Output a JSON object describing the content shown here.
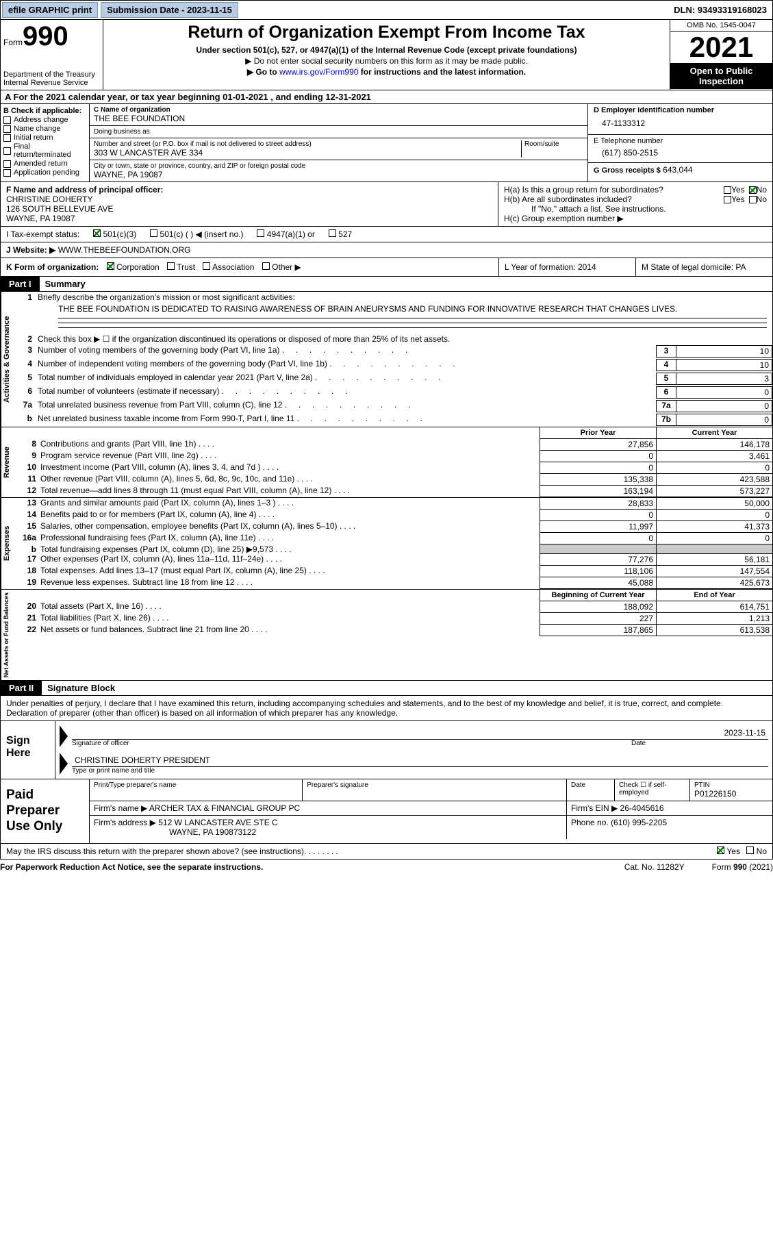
{
  "topbar": {
    "efile": "efile GRAPHIC print",
    "submission": "Submission Date - 2023-11-15",
    "dln": "DLN: 93493319168023"
  },
  "header": {
    "form_word": "Form",
    "form_num": "990",
    "dept": "Department of the Treasury Internal Revenue Service",
    "title": "Return of Organization Exempt From Income Tax",
    "sub1": "Under section 501(c), 527, or 4947(a)(1) of the Internal Revenue Code (except private foundations)",
    "sub2a": "▶ Do not enter social security numbers on this form as it may be made public.",
    "sub2b_pre": "▶ Go to ",
    "sub2b_link": "www.irs.gov/Form990",
    "sub2b_post": " for instructions and the latest information.",
    "omb": "OMB No. 1545-0047",
    "year": "2021",
    "open": "Open to Public Inspection"
  },
  "rowA": "A For the 2021 calendar year, or tax year beginning 01-01-2021    , and ending 12-31-2021",
  "B": {
    "label": "B Check if applicable:",
    "opts": [
      "Address change",
      "Name change",
      "Initial return",
      "Final return/terminated",
      "Amended return",
      "Application pending"
    ]
  },
  "C": {
    "name_lbl": "C Name of organization",
    "name": "THE BEE FOUNDATION",
    "dba_lbl": "Doing business as",
    "dba": "",
    "street_lbl": "Number and street (or P.O. box if mail is not delivered to street address)",
    "room_lbl": "Room/suite",
    "street": "303 W LANCASTER AVE 334",
    "city_lbl": "City or town, state or province, country, and ZIP or foreign postal code",
    "city": "WAYNE, PA   19087"
  },
  "D": {
    "ein_lbl": "D Employer identification number",
    "ein": "47-1133312",
    "phone_lbl": "E Telephone number",
    "phone": "(617) 850-2515",
    "gross_lbl": "G Gross receipts $",
    "gross": "643,044"
  },
  "F": {
    "lbl": "F Name and address of principal officer:",
    "name": "CHRISTINE DOHERTY",
    "addr1": "126 SOUTH BELLEVUE AVE",
    "addr2": "WAYNE, PA  19087"
  },
  "H": {
    "a": "H(a)  Is this a group return for subordinates?",
    "b": "H(b)  Are all subordinates included?",
    "b2": "If \"No,\" attach a list. See instructions.",
    "c": "H(c)  Group exemption number ▶",
    "yes": "Yes",
    "no": "No"
  },
  "I": {
    "lbl": "I   Tax-exempt status:",
    "o1": "501(c)(3)",
    "o2": "501(c) (  ) ◀ (insert no.)",
    "o3": "4947(a)(1) or",
    "o4": "527"
  },
  "J": {
    "lbl": "J   Website: ▶",
    "val": "  WWW.THEBEEFOUNDATION.ORG"
  },
  "K": {
    "lbl": "K Form of organization:",
    "o1": "Corporation",
    "o2": "Trust",
    "o3": "Association",
    "o4": "Other ▶",
    "L": "L Year of formation: 2014",
    "M": "M State of legal domicile: PA"
  },
  "part1": {
    "hdr": "Part I",
    "title": "Summary"
  },
  "summary": {
    "tab1": "Activities & Governance",
    "l1": "Briefly describe the organization's mission or most significant activities:",
    "mission": "THE BEE FOUNDATION IS DEDICATED TO RAISING AWARENESS OF BRAIN ANEURYSMS AND FUNDING FOR INNOVATIVE RESEARCH THAT CHANGES LIVES.",
    "l2": "Check this box ▶ ☐  if the organization discontinued its operations or disposed of more than 25% of its net assets.",
    "lines_gov": [
      {
        "n": "3",
        "t": "Number of voting members of the governing body (Part VI, line 1a)",
        "box": "3",
        "v": "10"
      },
      {
        "n": "4",
        "t": "Number of independent voting members of the governing body (Part VI, line 1b)",
        "box": "4",
        "v": "10"
      },
      {
        "n": "5",
        "t": "Total number of individuals employed in calendar year 2021 (Part V, line 2a)",
        "box": "5",
        "v": "3"
      },
      {
        "n": "6",
        "t": "Total number of volunteers (estimate if necessary)",
        "box": "6",
        "v": "0"
      },
      {
        "n": "7a",
        "t": "Total unrelated business revenue from Part VIII, column (C), line 12",
        "box": "7a",
        "v": "0"
      },
      {
        "n": "b",
        "t": "Net unrelated business taxable income from Form 990-T, Part I, line 11",
        "box": "7b",
        "v": "0"
      }
    ]
  },
  "fin": {
    "prior": "Prior Year",
    "current": "Current Year",
    "rev_tab": "Revenue",
    "rev": [
      {
        "n": "8",
        "t": "Contributions and grants (Part VIII, line 1h)",
        "p": "27,856",
        "c": "146,178"
      },
      {
        "n": "9",
        "t": "Program service revenue (Part VIII, line 2g)",
        "p": "0",
        "c": "3,461"
      },
      {
        "n": "10",
        "t": "Investment income (Part VIII, column (A), lines 3, 4, and 7d )",
        "p": "0",
        "c": "0"
      },
      {
        "n": "11",
        "t": "Other revenue (Part VIII, column (A), lines 5, 6d, 8c, 9c, 10c, and 11e)",
        "p": "135,338",
        "c": "423,588"
      },
      {
        "n": "12",
        "t": "Total revenue—add lines 8 through 11 (must equal Part VIII, column (A), line 12)",
        "p": "163,194",
        "c": "573,227"
      }
    ],
    "exp_tab": "Expenses",
    "exp": [
      {
        "n": "13",
        "t": "Grants and similar amounts paid (Part IX, column (A), lines 1–3 )",
        "p": "28,833",
        "c": "50,000"
      },
      {
        "n": "14",
        "t": "Benefits paid to or for members (Part IX, column (A), line 4)",
        "p": "0",
        "c": "0"
      },
      {
        "n": "15",
        "t": "Salaries, other compensation, employee benefits (Part IX, column (A), lines 5–10)",
        "p": "11,997",
        "c": "41,373"
      },
      {
        "n": "16a",
        "t": "Professional fundraising fees (Part IX, column (A), line 11e)",
        "p": "0",
        "c": "0"
      },
      {
        "n": "b",
        "t": "Total fundraising expenses (Part IX, column (D), line 25) ▶9,573",
        "p": "grey",
        "c": "grey"
      },
      {
        "n": "17",
        "t": "Other expenses (Part IX, column (A), lines 11a–11d, 11f–24e)",
        "p": "77,276",
        "c": "56,181"
      },
      {
        "n": "18",
        "t": "Total expenses. Add lines 13–17 (must equal Part IX, column (A), line 25)",
        "p": "118,106",
        "c": "147,554"
      },
      {
        "n": "19",
        "t": "Revenue less expenses. Subtract line 18 from line 12",
        "p": "45,088",
        "c": "425,673"
      }
    ],
    "net_tab": "Net Assets or Fund Balances",
    "beg": "Beginning of Current Year",
    "end": "End of Year",
    "net": [
      {
        "n": "20",
        "t": "Total assets (Part X, line 16)",
        "p": "188,092",
        "c": "614,751"
      },
      {
        "n": "21",
        "t": "Total liabilities (Part X, line 26)",
        "p": "227",
        "c": "1,213"
      },
      {
        "n": "22",
        "t": "Net assets or fund balances. Subtract line 21 from line 20",
        "p": "187,865",
        "c": "613,538"
      }
    ]
  },
  "part2": {
    "hdr": "Part II",
    "title": "Signature Block"
  },
  "sig": {
    "intro": "Under penalties of perjury, I declare that I have examined this return, including accompanying schedules and statements, and to the best of my knowledge and belief, it is true, correct, and complete. Declaration of preparer (other than officer) is based on all information of which preparer has any knowledge.",
    "here": "Sign Here",
    "sig_lbl": "Signature of officer",
    "date": "2023-11-15",
    "date_lbl": "Date",
    "name": "CHRISTINE DOHERTY PRESIDENT",
    "name_lbl": "Type or print name and title"
  },
  "prep": {
    "left": "Paid Preparer Use Only",
    "r1": {
      "a": "Print/Type preparer's name",
      "b": "Preparer's signature",
      "c": "Date",
      "d_pre": "Check ☐ if self-employed",
      "e_lbl": "PTIN",
      "e": "P01226150"
    },
    "r2": {
      "a": "Firm's name    ▶",
      "a2": "ARCHER TAX & FINANCIAL GROUP PC",
      "b": "Firm's EIN ▶",
      "b2": "26-4045616"
    },
    "r3": {
      "a": "Firm's address ▶",
      "a2": "512 W LANCASTER AVE STE C",
      "a3": "WAYNE, PA  190873122",
      "b": "Phone no.",
      "b2": "(610) 995-2205"
    }
  },
  "footer": {
    "q": "May the IRS discuss this return with the preparer shown above? (see instructions)",
    "yes": "Yes",
    "no": "No"
  },
  "bottom": {
    "l": "For Paperwork Reduction Act Notice, see the separate instructions.",
    "m": "Cat. No. 11282Y",
    "r": "Form 990 (2021)"
  },
  "colors": {
    "btn_bg": "#b8cce4",
    "link": "#0000cc",
    "check": "#008000"
  }
}
